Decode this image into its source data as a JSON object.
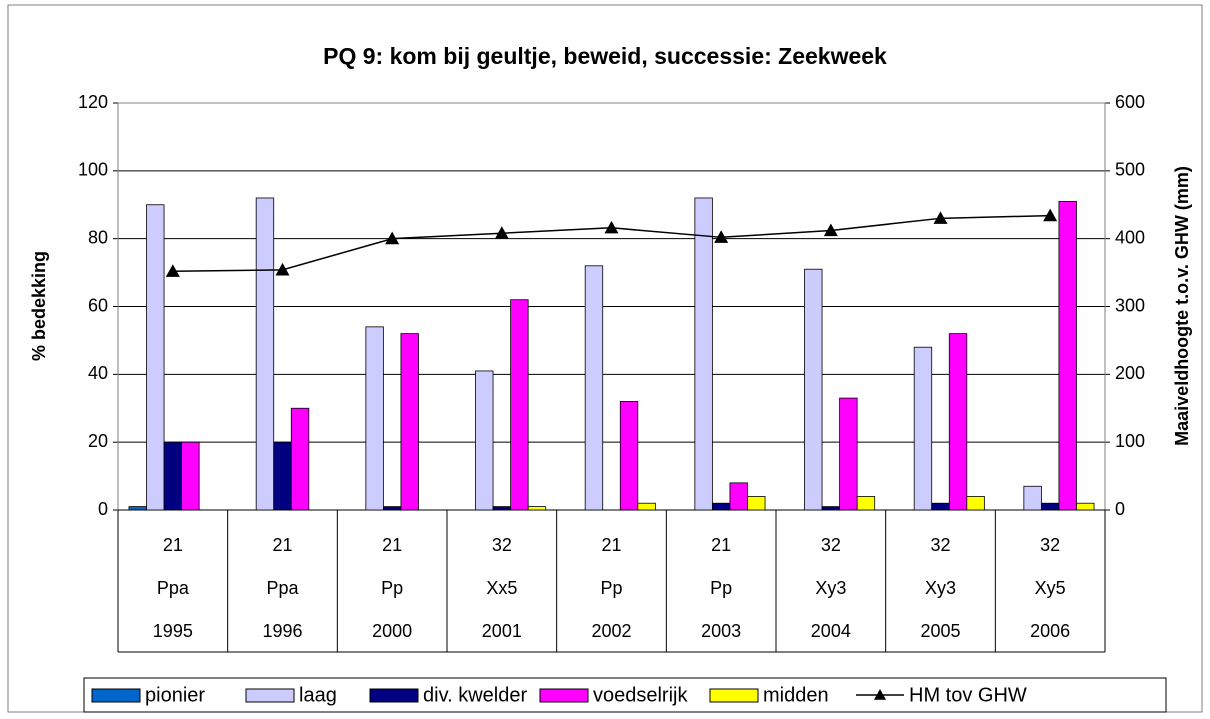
{
  "chart_data": {
    "type": "bar",
    "title": "PQ 9: kom bij geultje, beweid, successie: Zeekweek",
    "y_label": "% bedekking",
    "y2_label": "Maaiveldhoogte t.o.v. GHW (mm)",
    "categories": [
      "1995",
      "1996",
      "2000",
      "2001",
      "2002",
      "2003",
      "2004",
      "2005",
      "2006"
    ],
    "category_codes": [
      21,
      21,
      21,
      32,
      21,
      21,
      32,
      32,
      32
    ],
    "category_types": [
      "Ppa",
      "Ppa",
      "Pp",
      "Xx5",
      "Pp",
      "Pp",
      "Xy3",
      "Xy3",
      "Xy5"
    ],
    "series": [
      {
        "name": "pionier",
        "color": "#0066cc",
        "values": [
          1,
          0,
          0,
          0,
          0,
          0,
          0,
          0,
          0
        ]
      },
      {
        "name": "laag",
        "color": "#ccccff",
        "values": [
          90,
          92,
          54,
          41,
          72,
          92,
          71,
          48,
          7
        ]
      },
      {
        "name": "div. kwelder",
        "color": "#000080",
        "values": [
          20,
          20,
          1,
          1,
          0,
          2,
          1,
          2,
          2
        ]
      },
      {
        "name": "voedselrijk",
        "color": "#ff00ff",
        "values": [
          20,
          30,
          52,
          62,
          32,
          8,
          33,
          52,
          91
        ]
      },
      {
        "name": "midden",
        "color": "#ffff00",
        "values": [
          0,
          0,
          0,
          1,
          2,
          4,
          4,
          4,
          2
        ]
      },
      {
        "name": "HM tov GHW",
        "color": "#000000",
        "type": "line",
        "axis": "y2",
        "values": [
          352,
          354,
          400,
          408,
          416,
          402,
          412,
          430,
          434
        ]
      }
    ],
    "ylim": [
      0,
      120
    ],
    "yticks": [
      0,
      20,
      40,
      60,
      80,
      100,
      120
    ],
    "y2lim": [
      0,
      600
    ],
    "y2ticks": [
      0,
      100,
      200,
      300,
      400,
      500,
      600
    ],
    "grid": true,
    "legend": "bottom"
  }
}
